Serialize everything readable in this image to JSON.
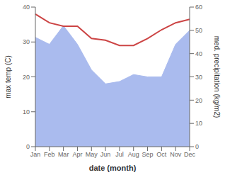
{
  "chart_data": {
    "type": "line",
    "categories": [
      "Jan",
      "Feb",
      "Mar",
      "Apr",
      "May",
      "Jun",
      "Jul",
      "Aug",
      "Sep",
      "Oct",
      "Nov",
      "Dec"
    ],
    "xlabel": "date (month)",
    "ylabel": "max temp (C)",
    "y2label": "med. precipitation (kg/m2)",
    "series": [
      {
        "type": "area",
        "axis": "y2",
        "color": "#aabbee",
        "values": [
          47.0,
          44.0,
          52.0,
          44.0,
          33.0,
          27.0,
          28.0,
          31.0,
          30.0,
          30.0,
          44.0,
          50.0
        ]
      },
      {
        "type": "line",
        "color": "#cc4444",
        "values": [
          38.0,
          35.5,
          34.5,
          34.5,
          31.0,
          30.5,
          29.0,
          29.0,
          31.0,
          33.5,
          35.5,
          36.5
        ]
      }
    ],
    "ylim": [
      0,
      40
    ],
    "yticks": [
      0,
      10,
      20,
      30,
      40
    ],
    "y2lim": [
      0,
      60
    ],
    "y2ticks": [
      0,
      10,
      20,
      30,
      40,
      50,
      60
    ],
    "grid": false
  }
}
